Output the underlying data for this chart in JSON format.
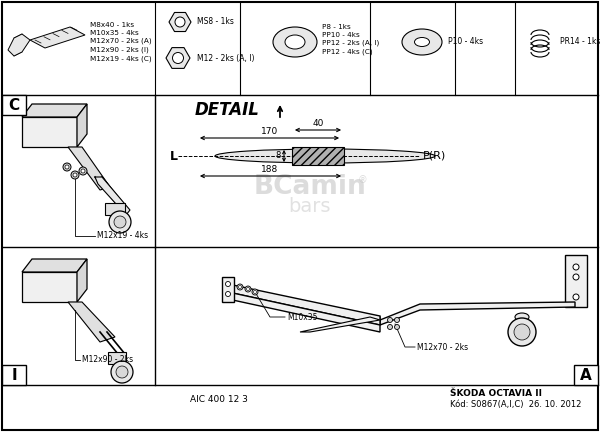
{
  "bg_color": "#ffffff",
  "label_C": "C",
  "label_I": "I",
  "label_A": "A",
  "label_detail": "DETAIL",
  "label_aic": "AIC 400 12 3",
  "label_skoda": "ŠKODA OCTAVIA II",
  "label_kod": "Kód: S0867(A,I,C)  26. 10. 2012",
  "parts_text_1": "M8x40 - 1ks\nM10x35 - 4ks\nM12x70 - 2ks (A)\nM12x90 - 2ks (I)\nM12x19 - 4ks (C)",
  "parts_text_2a": "MS8 - 1ks",
  "parts_text_2b": "M12 - 2ks (A, I)",
  "parts_text_3": "P8 - 1ks\nPP10 - 4ks\nPP12 - 2ks (A, I)\nPP12 - 4ks (C)",
  "parts_text_4": "P10 - 4ks",
  "parts_text_5": "PR14 - 1ks",
  "detail_label_L": "L",
  "detail_label_PR": "P(R)",
  "label_m12x19": "M12x19 - 4ks",
  "label_m12x90": "M12x90 - 2ks",
  "label_m10x35": "M10x35",
  "label_m12x70": "M12x70 - 2ks",
  "watermark_1": "BCamin",
  "watermark_2": "bars",
  "dim_170": "170",
  "dim_40": "40",
  "dim_8": "8",
  "dim_188": "188"
}
